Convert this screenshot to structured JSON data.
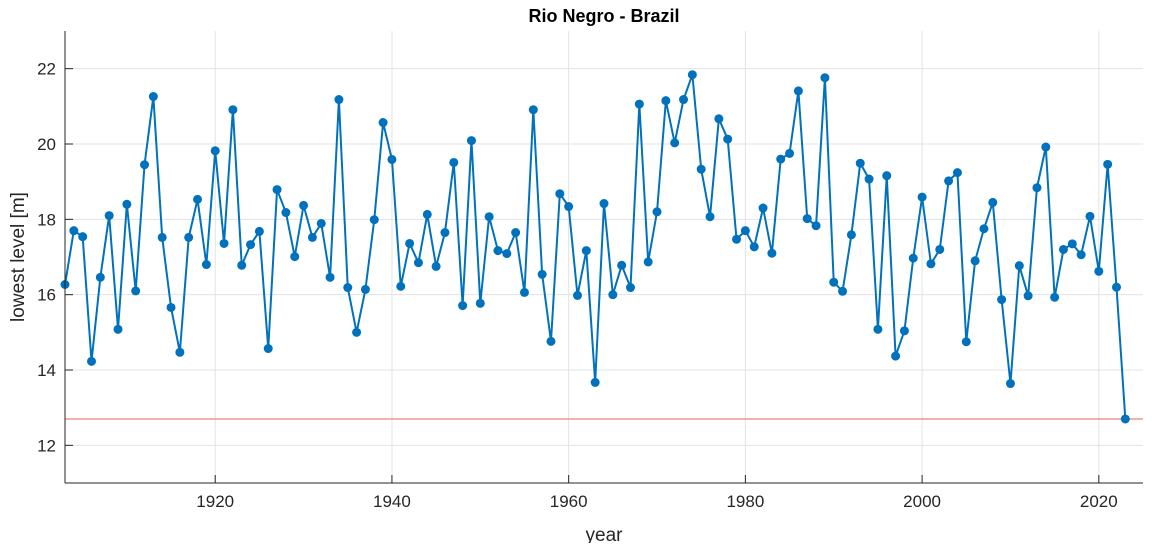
{
  "chart_data": {
    "type": "line",
    "title": "Rio Negro - Brazil",
    "xlabel": "year",
    "ylabel": "lowest level [m]",
    "xlim": [
      1903,
      2025
    ],
    "ylim": [
      11,
      23
    ],
    "xticks": [
      1920,
      1940,
      1960,
      1980,
      2000,
      2020
    ],
    "yticks": [
      12,
      14,
      16,
      18,
      20,
      22
    ],
    "grid": true,
    "colors": {
      "series": "#0072BD",
      "reference": "#EE9A88",
      "grid": "#E3E3E3",
      "axis": "#262626"
    },
    "reference_line": {
      "y": 12.7
    },
    "series": [
      {
        "name": "lowest level",
        "x_start": 1903,
        "values": [
          16.27,
          17.7,
          17.54,
          14.23,
          16.46,
          18.1,
          15.08,
          18.4,
          16.1,
          19.45,
          21.26,
          17.52,
          15.66,
          14.47,
          17.52,
          18.53,
          16.8,
          19.82,
          17.36,
          20.91,
          16.78,
          17.33,
          17.68,
          14.57,
          18.79,
          18.18,
          17.01,
          18.37,
          17.52,
          17.89,
          16.46,
          21.18,
          16.19,
          15.0,
          16.14,
          17.99,
          20.57,
          19.59,
          16.22,
          17.36,
          16.85,
          18.13,
          16.75,
          17.65,
          19.51,
          15.71,
          20.09,
          15.77,
          18.07,
          17.17,
          17.09,
          17.65,
          16.06,
          20.91,
          16.54,
          14.76,
          18.68,
          18.34,
          15.98,
          17.17,
          13.67,
          18.42,
          16.0,
          16.78,
          16.19,
          21.06,
          16.87,
          18.2,
          21.15,
          20.03,
          21.18,
          21.84,
          19.33,
          18.07,
          20.67,
          20.13,
          17.47,
          17.7,
          17.27,
          18.3,
          17.1,
          19.6,
          19.75,
          21.41,
          18.02,
          17.83,
          21.76,
          16.33,
          16.09,
          17.59,
          19.49,
          19.07,
          15.08,
          19.16,
          14.37,
          15.04,
          16.97,
          18.59,
          16.82,
          17.2,
          19.02,
          19.24,
          14.75,
          16.9,
          17.75,
          18.45,
          15.87,
          13.64,
          16.77,
          15.97,
          18.84,
          19.92,
          15.93,
          17.2,
          17.35,
          17.06,
          18.08,
          16.62,
          19.46,
          16.2,
          12.7
        ]
      }
    ]
  }
}
